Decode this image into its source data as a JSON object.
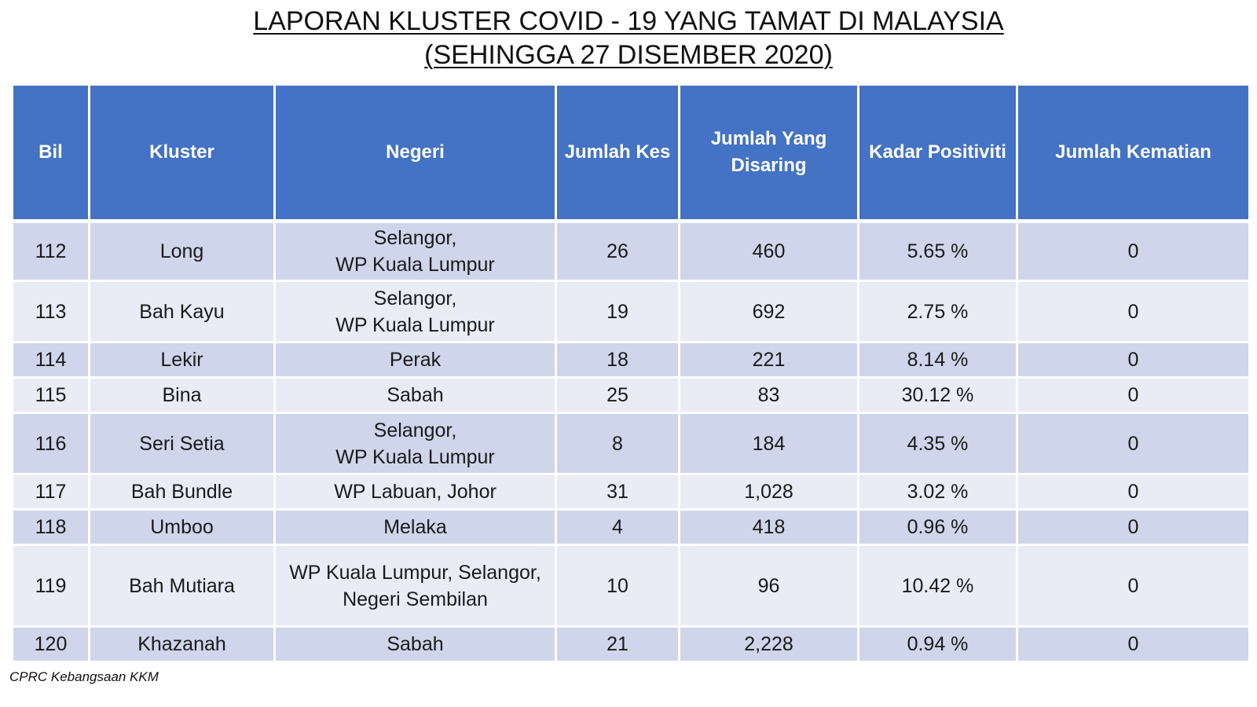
{
  "title": {
    "line1": "LAPORAN KLUSTER COVID - 19 YANG TAMAT DI MALAYSIA",
    "line2": "(SEHINGGA 27 DISEMBER 2020)"
  },
  "table": {
    "headers": [
      "Bil",
      "Kluster",
      "Negeri",
      "Jumlah Kes",
      "Jumlah Yang Disaring",
      "Kadar Positiviti",
      "Jumlah Kematian"
    ],
    "rows": [
      {
        "bil": "112",
        "kluster": "Long",
        "negeri": [
          "Selangor,",
          "WP Kuala Lumpur"
        ],
        "kes": "26",
        "disaring": "460",
        "positiviti": "5.65 %",
        "kematian": "0"
      },
      {
        "bil": "113",
        "kluster": "Bah Kayu",
        "negeri": [
          "Selangor,",
          "WP Kuala Lumpur"
        ],
        "kes": "19",
        "disaring": "692",
        "positiviti": "2.75 %",
        "kematian": "0"
      },
      {
        "bil": "114",
        "kluster": "Lekir",
        "negeri": [
          "Perak"
        ],
        "kes": "18",
        "disaring": "221",
        "positiviti": "8.14 %",
        "kematian": "0"
      },
      {
        "bil": "115",
        "kluster": "Bina",
        "negeri": [
          "Sabah"
        ],
        "kes": "25",
        "disaring": "83",
        "positiviti": "30.12 %",
        "kematian": "0"
      },
      {
        "bil": "116",
        "kluster": "Seri Setia",
        "negeri": [
          "Selangor,",
          "WP Kuala Lumpur"
        ],
        "kes": "8",
        "disaring": "184",
        "positiviti": "4.35 %",
        "kematian": "0"
      },
      {
        "bil": "117",
        "kluster": "Bah Bundle",
        "negeri": [
          "WP Labuan, Johor"
        ],
        "kes": "31",
        "disaring": "1,028",
        "positiviti": "3.02 %",
        "kematian": "0"
      },
      {
        "bil": "118",
        "kluster": "Umboo",
        "negeri": [
          "Melaka"
        ],
        "kes": "4",
        "disaring": "418",
        "positiviti": "0.96 %",
        "kematian": "0"
      },
      {
        "bil": "119",
        "kluster": "Bah Mutiara",
        "negeri": [
          "WP Kuala Lumpur, Selangor,",
          "Negeri Sembilan"
        ],
        "kes": "10",
        "disaring": "96",
        "positiviti": "10.42 %",
        "kematian": "0"
      },
      {
        "bil": "120",
        "kluster": "Khazanah",
        "negeri": [
          "Sabah"
        ],
        "kes": "21",
        "disaring": "2,228",
        "positiviti": "0.94 %",
        "kematian": "0"
      }
    ]
  },
  "footer": {
    "source": "CPRC Kebangsaan KKM"
  },
  "colors": {
    "header_bg": "#4472c4",
    "row_dark": "#cfd5ea",
    "row_light": "#e9ebf5"
  }
}
